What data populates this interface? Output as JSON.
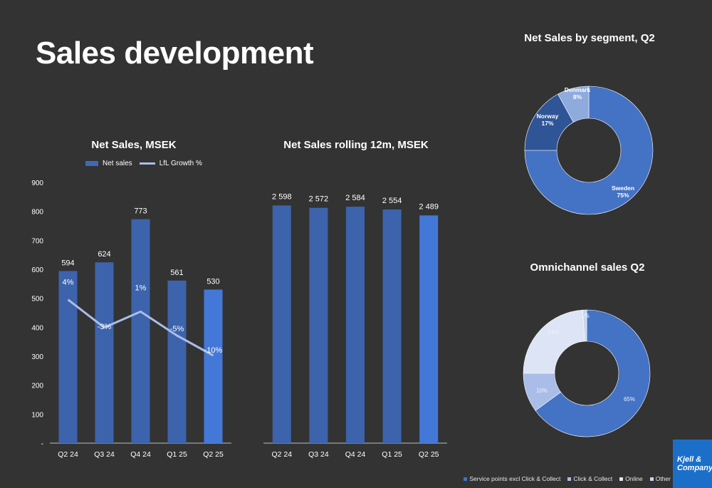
{
  "page": {
    "title": "Sales development"
  },
  "logo": {
    "line1": "Kjell &",
    "line2": "Company"
  },
  "colors": {
    "background": "#333333",
    "bar": "#3c63ac",
    "bar_highlight": "#4478d8",
    "line": "#a9bde8"
  },
  "chart_data": [
    {
      "type": "bar",
      "title": "Net Sales, MSEK",
      "categories": [
        "Q2 24",
        "Q3 24",
        "Q4 24",
        "Q1 25",
        "Q2 25"
      ],
      "series": [
        {
          "name": "Net sales",
          "type": "bar",
          "values": [
            594,
            624,
            773,
            561,
            530
          ],
          "labels": [
            "594",
            "624",
            "773",
            "561",
            "530"
          ]
        },
        {
          "name": "LfL Growth %",
          "type": "line",
          "values": [
            4,
            -3,
            1,
            -5,
            -10
          ],
          "labels": [
            "4%",
            "-3%",
            "1%",
            "-5%",
            "-10%"
          ]
        }
      ],
      "ylim": [
        0,
        900
      ],
      "yticks": [
        0,
        100,
        200,
        300,
        400,
        500,
        600,
        700,
        800,
        900
      ],
      "ytick_labels": [
        "-",
        "100",
        "200",
        "300",
        "400",
        "500",
        "600",
        "700",
        "800",
        "900"
      ],
      "legend": "top"
    },
    {
      "type": "bar",
      "title": "Net Sales rolling 12m, MSEK",
      "categories": [
        "Q2 24",
        "Q3 24",
        "Q4 24",
        "Q1 25",
        "Q2 25"
      ],
      "values": [
        2598,
        2572,
        2584,
        2554,
        2489
      ],
      "labels": [
        "2 598",
        "2 572",
        "2 584",
        "2 554",
        "2 489"
      ],
      "ylim": [
        0,
        2850
      ]
    },
    {
      "type": "pie",
      "title": "Net Sales by segment, Q2",
      "slices": [
        {
          "name": "Sweden",
          "value": 75,
          "label": "75%",
          "color": "#4472c4"
        },
        {
          "name": "Norway",
          "value": 17,
          "label": "17%",
          "color": "#2f5597"
        },
        {
          "name": "Denmark",
          "value": 8,
          "label": "8%",
          "color": "#8faadc"
        }
      ]
    },
    {
      "type": "pie",
      "title": "Omnichannel sales Q2",
      "slices": [
        {
          "name": "Service points excl Click & Collect",
          "value": 65,
          "label": "65%",
          "color": "#4472c4"
        },
        {
          "name": "Click & Collect",
          "value": 10,
          "label": "10%",
          "color": "#a9bde8"
        },
        {
          "name": "Online",
          "value": 24,
          "label": "24%",
          "color": "#dce4f5"
        },
        {
          "name": "Other",
          "value": 1,
          "label": "1%",
          "color": "#c8d4ee"
        }
      ],
      "legend": "bottom"
    }
  ]
}
